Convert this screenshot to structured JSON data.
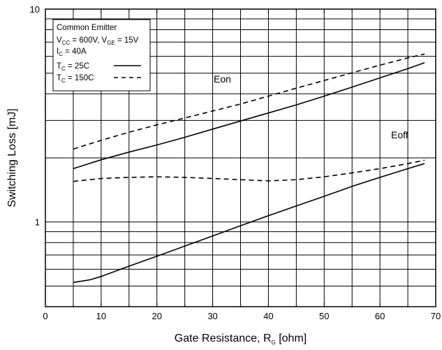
{
  "chart_data": {
    "type": "line",
    "xlabel": {
      "main": "Gate Resistance, R",
      "sub": "G",
      "unit": " [ohm]"
    },
    "ylabel": "Switching Loss [mJ]",
    "x_range": [
      0,
      70
    ],
    "y_range": [
      0.4,
      10
    ],
    "y_scale": "log",
    "x_ticks": [
      0,
      10,
      20,
      30,
      40,
      50,
      60,
      70
    ],
    "y_tick_labels": [
      "10",
      "1"
    ],
    "grid": true,
    "legend": {
      "position": "top-left",
      "lines": [
        {
          "parts": [
            [
              "Common Emitter",
              ""
            ]
          ]
        },
        {
          "parts": [
            [
              "V",
              ""
            ],
            [
              "CC",
              "sub"
            ],
            [
              " = 600V,  V",
              ""
            ],
            [
              "GE",
              "sub"
            ],
            [
              " = 15V",
              ""
            ]
          ]
        },
        {
          "parts": [
            [
              "I",
              ""
            ],
            [
              "C",
              "sub"
            ],
            [
              " = 40A",
              ""
            ]
          ]
        },
        {
          "parts": [
            [
              "T",
              ""
            ],
            [
              "C",
              "sub"
            ],
            [
              " = 25C",
              ""
            ]
          ],
          "style": "solid"
        },
        {
          "parts": [
            [
              "T",
              ""
            ],
            [
              "C",
              "sub"
            ],
            [
              " = 150C",
              ""
            ]
          ],
          "style": "dashed"
        }
      ]
    },
    "annotations": [
      "Eon",
      "Eoff"
    ],
    "series": [
      {
        "curve": "Eon",
        "condition": "25C",
        "style": "solid",
        "x": [
          5,
          10,
          15,
          20,
          25,
          30,
          35,
          40,
          45,
          50,
          55,
          60,
          65,
          68
        ],
        "y": [
          1.78,
          1.96,
          2.13,
          2.3,
          2.5,
          2.73,
          2.98,
          3.25,
          3.55,
          3.9,
          4.3,
          4.75,
          5.25,
          5.6
        ]
      },
      {
        "curve": "Eon",
        "condition": "150C",
        "style": "dashed",
        "x": [
          5,
          10,
          15,
          20,
          25,
          30,
          35,
          40,
          45,
          50,
          55,
          60,
          65,
          68
        ],
        "y": [
          2.2,
          2.42,
          2.64,
          2.86,
          3.08,
          3.32,
          3.58,
          3.9,
          4.25,
          4.62,
          5.02,
          5.45,
          5.9,
          6.15
        ]
      },
      {
        "curve": "Eoff",
        "condition": "25C",
        "style": "solid",
        "x": [
          5,
          8,
          10,
          15,
          20,
          25,
          30,
          35,
          40,
          45,
          50,
          55,
          60,
          65,
          68
        ],
        "y": [
          0.52,
          0.535,
          0.555,
          0.62,
          0.69,
          0.77,
          0.86,
          0.96,
          1.07,
          1.19,
          1.32,
          1.47,
          1.62,
          1.78,
          1.88
        ]
      },
      {
        "curve": "Eoff",
        "condition": "150C",
        "style": "dashed",
        "x": [
          5,
          10,
          15,
          20,
          25,
          30,
          35,
          40,
          45,
          50,
          55,
          60,
          65,
          68
        ],
        "y": [
          1.55,
          1.6,
          1.62,
          1.63,
          1.62,
          1.6,
          1.58,
          1.56,
          1.58,
          1.63,
          1.7,
          1.78,
          1.88,
          1.95
        ]
      }
    ]
  }
}
